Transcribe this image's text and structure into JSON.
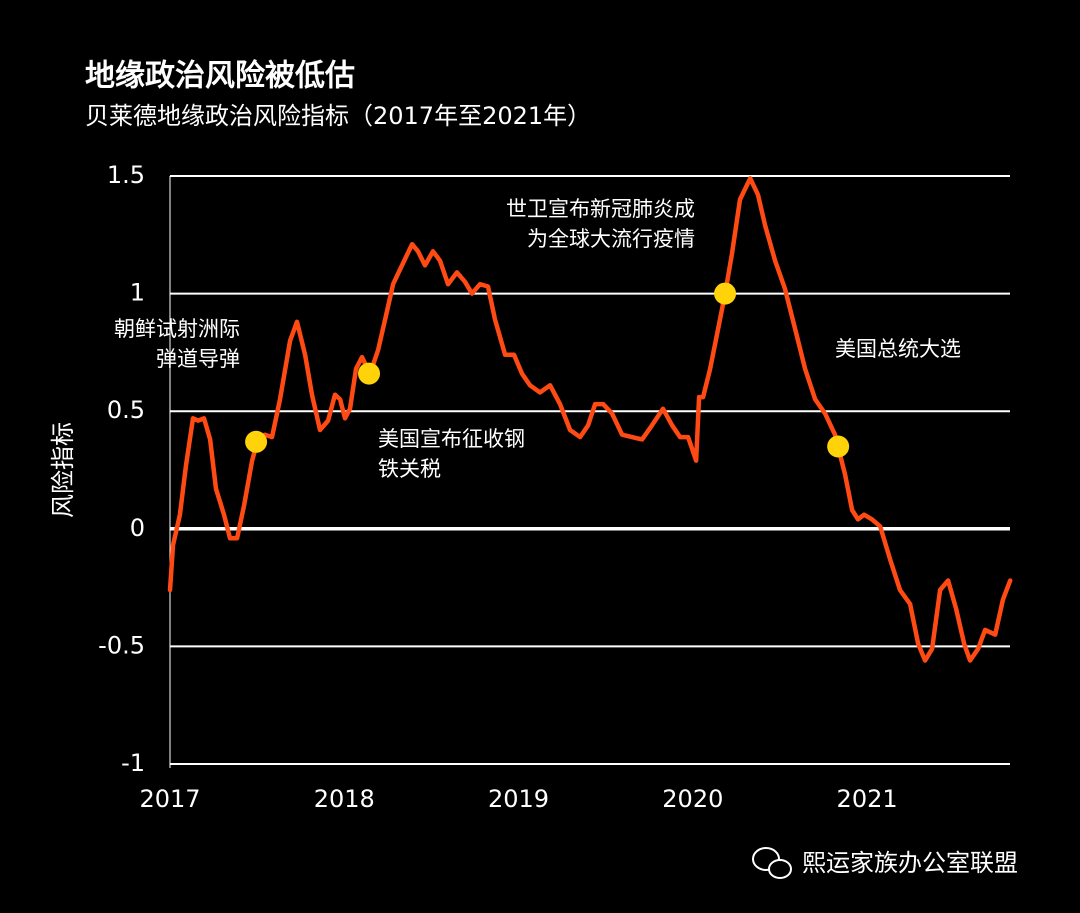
{
  "chart_data": {
    "type": "line",
    "title": "地缘政治风险被低估",
    "subtitle": "贝莱德地缘政治风险指标（2017年至2021年）",
    "ylabel": "风险指标",
    "xlim": [
      2017,
      2021.82
    ],
    "xticks": [
      2017,
      2018,
      2019,
      2020,
      2021
    ],
    "ylim": [
      -1,
      1.5
    ],
    "yticks": [
      -1,
      -0.5,
      0,
      0.5,
      1,
      1.5
    ],
    "grid": true,
    "series": [
      {
        "color": "#ff4a14",
        "x": [
          2017.0,
          2017.017,
          2017.057,
          2017.092,
          2017.132,
          2017.161,
          2017.195,
          2017.23,
          2017.264,
          2017.31,
          2017.344,
          2017.385,
          2017.425,
          2017.471,
          2017.505,
          2017.545,
          2017.585,
          2017.631,
          2017.689,
          2017.729,
          2017.775,
          2017.815,
          2017.861,
          2017.907,
          2017.947,
          2017.976,
          2018.004,
          2018.033,
          2018.067,
          2018.102,
          2018.148,
          2018.194,
          2018.234,
          2018.28,
          2018.331,
          2018.389,
          2018.423,
          2018.463,
          2018.509,
          2018.549,
          2018.595,
          2018.647,
          2018.693,
          2018.733,
          2018.779,
          2018.825,
          2018.865,
          2018.923,
          2018.974,
          2019.02,
          2019.066,
          2019.123,
          2019.181,
          2019.238,
          2019.296,
          2019.353,
          2019.399,
          2019.439,
          2019.485,
          2019.537,
          2019.594,
          2019.651,
          2019.709,
          2019.766,
          2019.829,
          2019.881,
          2019.927,
          2019.973,
          2020.019,
          2020.036,
          2020.059,
          2020.099,
          2020.145,
          2020.185,
          2020.225,
          2020.271,
          2020.329,
          2020.374,
          2020.415,
          2020.472,
          2020.529,
          2020.587,
          2020.644,
          2020.702,
          2020.759,
          2020.816,
          2020.874,
          2020.914,
          2020.948,
          2020.983,
          2021.029,
          2021.075,
          2021.132,
          2021.189,
          2021.247,
          2021.293,
          2021.333,
          2021.373,
          2021.419,
          2021.465,
          2021.511,
          2021.557,
          2021.591,
          2021.637,
          2021.677,
          2021.735,
          2021.78,
          2021.821
        ],
        "values": [
          -0.26,
          -0.07,
          0.06,
          0.27,
          0.47,
          0.46,
          0.47,
          0.38,
          0.17,
          0.06,
          -0.04,
          -0.04,
          0.1,
          0.29,
          0.38,
          0.4,
          0.39,
          0.55,
          0.8,
          0.88,
          0.74,
          0.57,
          0.42,
          0.46,
          0.57,
          0.55,
          0.47,
          0.51,
          0.68,
          0.73,
          0.66,
          0.76,
          0.89,
          1.04,
          1.12,
          1.21,
          1.18,
          1.12,
          1.18,
          1.14,
          1.04,
          1.09,
          1.05,
          1.0,
          1.04,
          1.03,
          0.89,
          0.74,
          0.74,
          0.66,
          0.61,
          0.58,
          0.61,
          0.53,
          0.42,
          0.39,
          0.44,
          0.53,
          0.53,
          0.49,
          0.4,
          0.39,
          0.38,
          0.44,
          0.51,
          0.44,
          0.39,
          0.39,
          0.29,
          0.56,
          0.56,
          0.68,
          0.85,
          1.0,
          1.17,
          1.4,
          1.49,
          1.42,
          1.29,
          1.14,
          1.02,
          0.85,
          0.68,
          0.55,
          0.49,
          0.4,
          0.23,
          0.08,
          0.04,
          0.06,
          0.04,
          0.01,
          -0.13,
          -0.26,
          -0.32,
          -0.49,
          -0.56,
          -0.51,
          -0.26,
          -0.22,
          -0.34,
          -0.49,
          -0.56,
          -0.51,
          -0.43,
          -0.45,
          -0.3,
          -0.22
        ]
      }
    ],
    "annotations": [
      {
        "text": [
          "朝鲜试射洲际",
          "弹道导弹"
        ],
        "x": 2017.494,
        "y": 0.37
      },
      {
        "text": [
          "美国宣布征收钢",
          "铁关税"
        ],
        "x": 2018.142,
        "y": 0.66
      },
      {
        "text": [
          "世卫宣布新冠肺炎成",
          "为全球大流行疫情"
        ],
        "x": 2020.185,
        "y": 1.0
      },
      {
        "text": [
          "美国总统大选"
        ],
        "x": 2020.834,
        "y": 0.35
      }
    ],
    "marker_color": "#ffd20a",
    "watermark": "熙运家族办公室联盟"
  }
}
